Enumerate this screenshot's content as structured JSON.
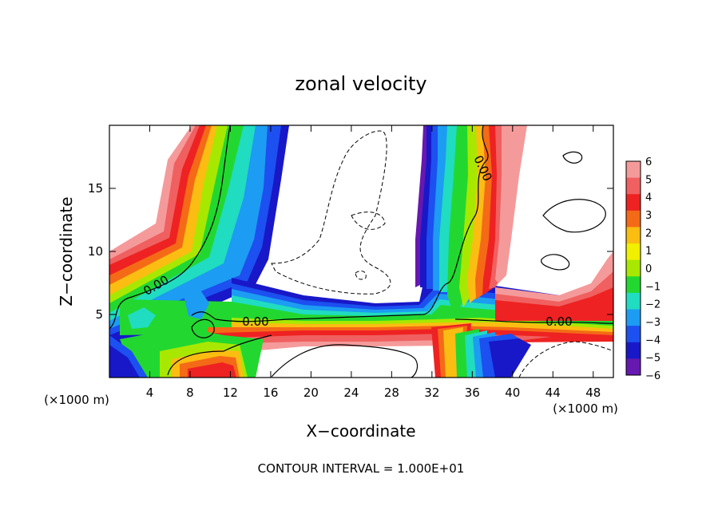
{
  "chart_data": {
    "type": "heatmap",
    "title": "zonal velocity",
    "xlabel": "X−coordinate",
    "ylabel": "Z−coordinate",
    "x_unit_label": "(×1000 m)",
    "z_unit_label": "(×1000 m)",
    "footer": "CONTOUR INTERVAL = 1.000E+01",
    "xlim": [
      0,
      50
    ],
    "ylim": [
      0,
      20
    ],
    "x_ticks": [
      4,
      8,
      12,
      16,
      20,
      24,
      28,
      32,
      36,
      40,
      44,
      48
    ],
    "y_ticks": [
      5,
      10,
      15
    ],
    "contour_label": "0.00",
    "colorbar": {
      "min": -6,
      "max": 6,
      "levels": [
        6,
        5,
        4,
        3,
        2,
        1,
        0,
        -1,
        -2,
        -3,
        -4,
        -5,
        -6
      ],
      "labels": [
        "6",
        "5",
        "4",
        "3",
        "2",
        "1",
        "0",
        "−1",
        "−2",
        "−3",
        "−4",
        "−5",
        "−6"
      ],
      "colors": [
        "#f59a9a",
        "#f06060",
        "#ee2222",
        "#f46a16",
        "#fbbd12",
        "#f0f000",
        "#a8e800",
        "#22d830",
        "#20dcc0",
        "#1c9cf2",
        "#1c50f0",
        "#1818c8",
        "#6618b0"
      ]
    }
  }
}
